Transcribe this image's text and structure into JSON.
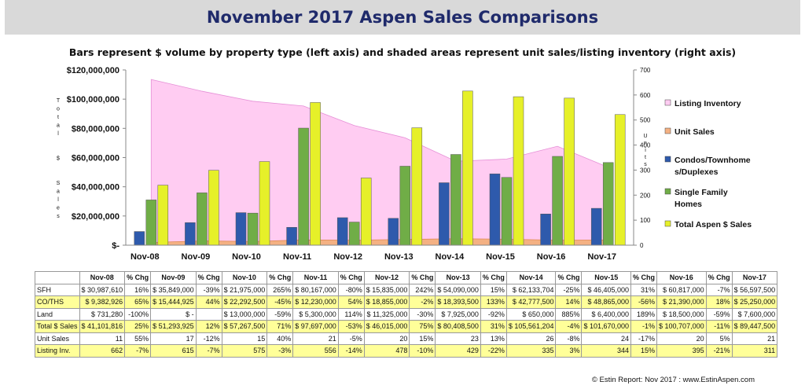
{
  "header": {
    "title": "November 2017 Aspen Sales Comparisons",
    "subtitle": "Bars represent $ volume by property type (left axis) and shaded areas represent unit sales/listing inventory (right axis)"
  },
  "chart_data": {
    "type": "bar",
    "categories": [
      "Nov-08",
      "Nov-09",
      "Nov-10",
      "Nov-11",
      "Nov-12",
      "Nov-13",
      "Nov-14",
      "Nov-15",
      "Nov-16",
      "Nov-17"
    ],
    "y_left": {
      "label": "Total $ Sales",
      "ylim": [
        0,
        120000000
      ],
      "ticks": [
        "$-",
        "$20,000,000",
        "$40,000,000",
        "$60,000,000",
        "$80,000,000",
        "$100,000,000",
        "$120,000,000"
      ]
    },
    "y_right": {
      "label": "Units",
      "ylim": [
        0,
        700
      ],
      "ticks": [
        "0",
        "100",
        "200",
        "300",
        "400",
        "500",
        "600",
        "700"
      ]
    },
    "series": [
      {
        "name": "Listing Inventory",
        "kind": "area",
        "axis": "right",
        "color": "#ffccf2",
        "values": [
          662,
          615,
          575,
          556,
          478,
          429,
          335,
          344,
          395,
          311
        ]
      },
      {
        "name": "Unit Sales",
        "kind": "area",
        "axis": "right",
        "color": "#f4b183",
        "values": [
          11,
          17,
          15,
          21,
          20,
          23,
          26,
          24,
          20,
          21
        ]
      },
      {
        "name": "Condos/Townhomes/Duplexes",
        "kind": "bar",
        "axis": "left",
        "color": "#2e5aac",
        "values": [
          9382926,
          15444925,
          22292500,
          12230000,
          18855000,
          18393500,
          42777500,
          48865000,
          21390000,
          25250000
        ]
      },
      {
        "name": "Single Family Homes",
        "kind": "bar",
        "axis": "left",
        "color": "#70ad47",
        "values": [
          30987610,
          35849000,
          21975000,
          80167000,
          15835000,
          54090000,
          62133704,
          46405000,
          60817000,
          56597500
        ]
      },
      {
        "name": "Total Aspen $ Sales",
        "kind": "bar",
        "axis": "left",
        "color": "#e6f029",
        "values": [
          41101816,
          51293925,
          57267500,
          97697000,
          46015000,
          80408500,
          105561204,
          101670000,
          100707000,
          89447500
        ]
      }
    ],
    "legend": [
      {
        "label": "Listing Inventory",
        "color": "#ffccf2"
      },
      {
        "label": "Unit Sales",
        "color": "#f4b183"
      },
      {
        "label": "Condos/Townhomes/Duplexes",
        "lines": [
          "Condos/Townhome",
          "s/Duplexes"
        ],
        "color": "#2e5aac"
      },
      {
        "label": "Single Family Homes",
        "lines": [
          "Single Family",
          "Homes"
        ],
        "color": "#70ad47"
      },
      {
        "label": "Total Aspen $ Sales",
        "color": "#e6f029"
      }
    ],
    "legend_position": "right",
    "grid": false
  },
  "table": {
    "header": [
      "",
      "Nov-08",
      "% Chg",
      "Nov-09",
      "% Chg",
      "Nov-10",
      "% Chg",
      "Nov-11",
      "% Chg",
      "Nov-12",
      "% Chg",
      "Nov-13",
      "% Chg",
      "Nov-14",
      "% Chg",
      "Nov-15",
      "% Chg",
      "Nov-16",
      "% Chg",
      "Nov-17"
    ],
    "rows": [
      {
        "highlight": false,
        "cells": [
          "SFH",
          "$ 30,987,610",
          "16%",
          "$ 35,849,000",
          "-39%",
          "$ 21,975,000",
          "265%",
          "$ 80,167,000",
          "-80%",
          "$ 15,835,000",
          "242%",
          "$ 54,090,000",
          "15%",
          "$ 62,133,704",
          "-25%",
          "$ 46,405,000",
          "31%",
          "$ 60,817,000",
          "-7%",
          "$ 56,597,500"
        ]
      },
      {
        "highlight": true,
        "cells": [
          "CO/THS",
          "$ 9,382,926",
          "65%",
          "$ 15,444,925",
          "44%",
          "$ 22,292,500",
          "-45%",
          "$ 12,230,000",
          "54%",
          "$ 18,855,000",
          "-2%",
          "$ 18,393,500",
          "133%",
          "$ 42,777,500",
          "14%",
          "$ 48,865,000",
          "-56%",
          "$ 21,390,000",
          "18%",
          "$ 25,250,000"
        ]
      },
      {
        "highlight": false,
        "cells": [
          "Land",
          "$ 731,280",
          "-100%",
          "$ -",
          "",
          "$ 13,000,000",
          "-59%",
          "$ 5,300,000",
          "114%",
          "$ 11,325,000",
          "-30%",
          "$ 7,925,000",
          "-92%",
          "$ 650,000",
          "885%",
          "$ 6,400,000",
          "189%",
          "$ 18,500,000",
          "-59%",
          "$ 7,600,000"
        ]
      },
      {
        "highlight": true,
        "cells": [
          "Total $ Sales",
          "$ 41,101,816",
          "25%",
          "$ 51,293,925",
          "12%",
          "$ 57,267,500",
          "71%",
          "$ 97,697,000",
          "-53%",
          "$ 46,015,000",
          "75%",
          "$ 80,408,500",
          "31%",
          "$ 105,561,204",
          "-4%",
          "$ 101,670,000",
          "-1%",
          "$ 100,707,000",
          "-11%",
          "$ 89,447,500"
        ]
      },
      {
        "highlight": false,
        "cells": [
          "Unit Sales",
          "11",
          "55%",
          "17",
          "-12%",
          "15",
          "40%",
          "21",
          "-5%",
          "20",
          "15%",
          "23",
          "13%",
          "26",
          "-8%",
          "24",
          "-17%",
          "20",
          "5%",
          "21"
        ]
      },
      {
        "highlight": true,
        "cells": [
          "Listing Inv.",
          "662",
          "-7%",
          "615",
          "-7%",
          "575",
          "-3%",
          "556",
          "-14%",
          "478",
          "-10%",
          "429",
          "-22%",
          "335",
          "3%",
          "344",
          "15%",
          "395",
          "-21%",
          "311"
        ]
      }
    ]
  },
  "credit": "© Estin Report: Nov 2017 : www.EstinAspen.com"
}
